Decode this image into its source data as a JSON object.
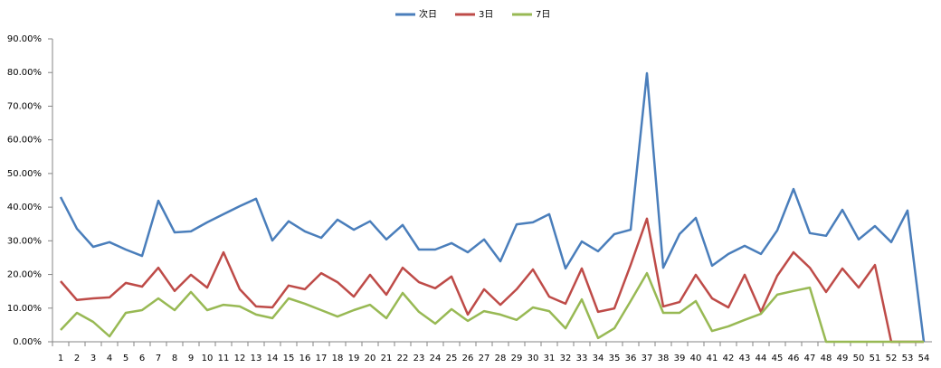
{
  "chart_data": {
    "type": "line",
    "categories": [
      "1",
      "2",
      "3",
      "4",
      "5",
      "6",
      "7",
      "8",
      "9",
      "10",
      "11",
      "12",
      "13",
      "14",
      "15",
      "16",
      "17",
      "18",
      "19",
      "20",
      "21",
      "22",
      "23",
      "24",
      "25",
      "26",
      "27",
      "28",
      "29",
      "30",
      "31",
      "32",
      "33",
      "34",
      "35",
      "36",
      "37",
      "38",
      "39",
      "40",
      "41",
      "42",
      "43",
      "44",
      "45",
      "46",
      "47",
      "48",
      "49",
      "50",
      "51",
      "52",
      "53",
      "54"
    ],
    "series": [
      {
        "name": "次日",
        "color": "#4a7ebb",
        "values": [
          43.0,
          33.6,
          28.2,
          29.6,
          27.4,
          25.5,
          41.9,
          32.5,
          32.8,
          35.5,
          37.9,
          40.3,
          42.5,
          30.1,
          35.8,
          32.8,
          30.9,
          36.3,
          33.3,
          35.8,
          30.4,
          34.7,
          27.4,
          27.4,
          29.3,
          26.6,
          30.4,
          23.9,
          34.9,
          35.5,
          37.9,
          21.8,
          29.8,
          26.9,
          32.0,
          33.3,
          79.8,
          22.0,
          32.0,
          36.8,
          22.6,
          26.1,
          28.5,
          26.1,
          33.1,
          45.4,
          32.3,
          31.5,
          39.2,
          30.4,
          34.4,
          29.6,
          39.0,
          0
        ]
      },
      {
        "name": "3日",
        "color": "#be4b48",
        "values": [
          18.0,
          12.4,
          12.9,
          13.2,
          17.5,
          16.4,
          22.0,
          15.1,
          19.9,
          16.1,
          26.6,
          15.6,
          10.5,
          10.2,
          16.7,
          15.6,
          20.4,
          17.7,
          13.4,
          19.9,
          14.0,
          22.0,
          17.7,
          15.9,
          19.4,
          8.1,
          15.6,
          11.0,
          15.6,
          21.5,
          13.4,
          11.3,
          21.8,
          8.9,
          9.9,
          22.8,
          36.6,
          10.5,
          11.8,
          19.9,
          12.9,
          10.2,
          19.9,
          8.9,
          19.6,
          26.6,
          22.0,
          14.8,
          21.8,
          16.1,
          22.8,
          0,
          0,
          0
        ]
      },
      {
        "name": "7日",
        "color": "#98b954",
        "values": [
          3.5,
          8.6,
          5.9,
          1.6,
          8.6,
          9.4,
          12.9,
          9.4,
          14.8,
          9.4,
          11.0,
          10.5,
          8.1,
          7.0,
          12.9,
          11.3,
          9.4,
          7.5,
          9.4,
          11.0,
          7.0,
          14.5,
          8.9,
          5.4,
          9.7,
          6.2,
          9.1,
          8.1,
          6.5,
          10.2,
          9.1,
          4.0,
          12.6,
          1.1,
          4.0,
          12.1,
          20.4,
          8.6,
          8.6,
          12.1,
          3.2,
          4.6,
          6.5,
          8.3,
          14.0,
          15.1,
          16.1,
          0,
          0,
          0,
          0,
          0,
          0,
          0
        ]
      }
    ],
    "ylim": [
      0,
      90
    ],
    "yticks": [
      {
        "value": 0,
        "label": "0.00%"
      },
      {
        "value": 10,
        "label": "10.00%"
      },
      {
        "value": 20,
        "label": "20.00%"
      },
      {
        "value": 30,
        "label": "30.00%"
      },
      {
        "value": 40,
        "label": "40.00%"
      },
      {
        "value": 50,
        "label": "50.00%"
      },
      {
        "value": 60,
        "label": "60.00%"
      },
      {
        "value": 70,
        "label": "70.00%"
      },
      {
        "value": 80,
        "label": "80.00%"
      },
      {
        "value": 90,
        "label": "90.00%"
      }
    ],
    "grid": false,
    "legend": "top"
  }
}
